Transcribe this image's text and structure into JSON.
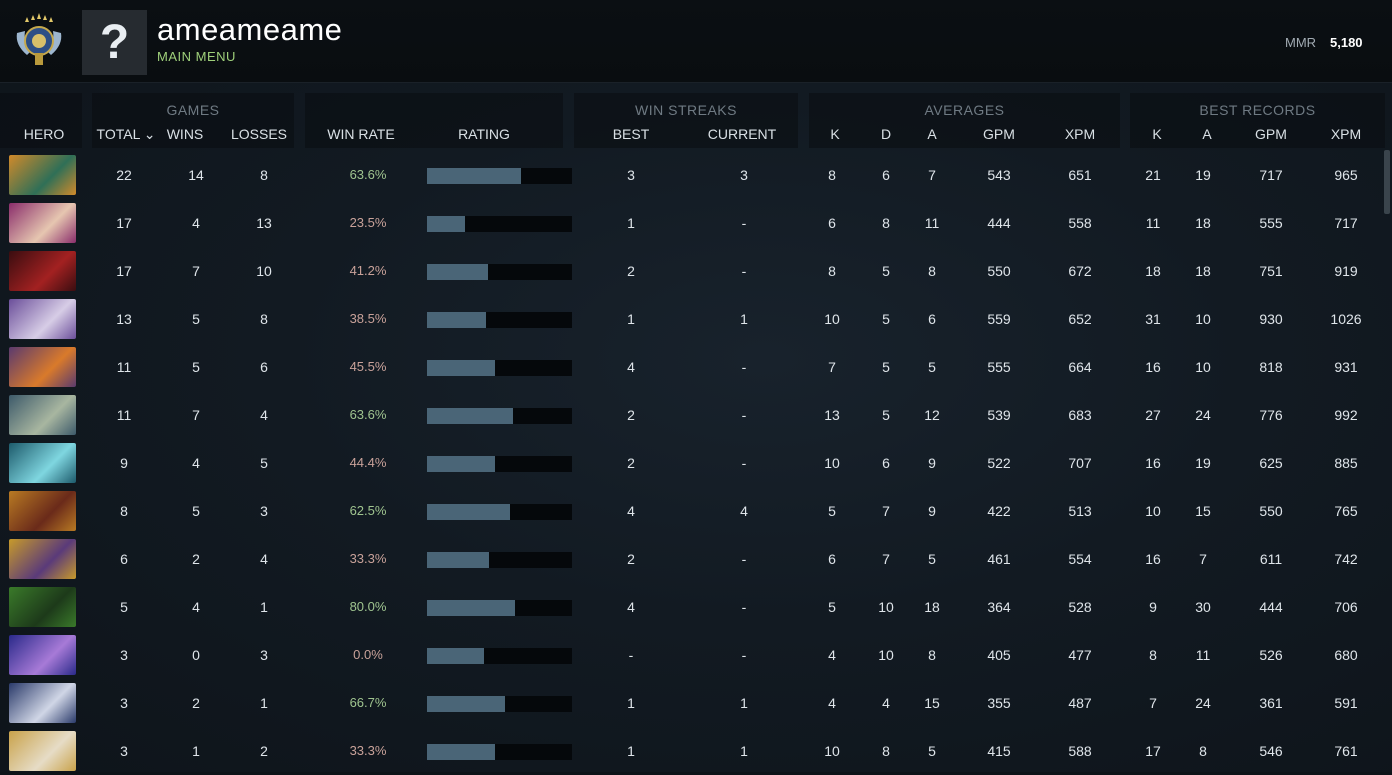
{
  "header": {
    "username": "ameameame",
    "subtitle": "MAIN MENU",
    "avatar_glyph": "?",
    "mmr_label": "MMR",
    "mmr_value": "5,180"
  },
  "groups": {
    "games": "GAMES",
    "win_streaks": "WIN STREAKS",
    "averages": "AVERAGES",
    "best_records": "BEST RECORDS"
  },
  "columns": {
    "hero": "HERO",
    "total": "TOTAL ⌄",
    "wins": "WINS",
    "losses": "LOSSES",
    "win_rate": "WIN RATE",
    "rating": "RATING",
    "best": "BEST",
    "current": "CURRENT",
    "avg_k": "K",
    "avg_d": "D",
    "avg_a": "A",
    "avg_gpm": "GPM",
    "avg_xpm": "XPM",
    "rec_k": "K",
    "rec_a": "A",
    "rec_gpm": "GPM",
    "rec_xpm": "XPM"
  },
  "colors": {
    "wr_good": "#9fc48f",
    "wr_bad": "#c9a29a",
    "rating_bar": "#4a6577",
    "accent_green": "#9fd07a"
  },
  "rows": [
    {
      "hero_colors": [
        "#d18a2a",
        "#2f6f57"
      ],
      "total": "22",
      "wins": "14",
      "losses": "8",
      "win_rate": "63.6%",
      "good": true,
      "rating": 0.65,
      "best": "3",
      "current": "3",
      "k": "8",
      "d": "6",
      "a": "7",
      "gpm": "543",
      "xpm": "651",
      "rk": "21",
      "ra": "19",
      "rgpm": "717",
      "rxpm": "965"
    },
    {
      "hero_colors": [
        "#8a2d6b",
        "#e6c6b0"
      ],
      "total": "17",
      "wins": "4",
      "losses": "13",
      "win_rate": "23.5%",
      "good": false,
      "rating": 0.26,
      "best": "1",
      "current": "-",
      "k": "6",
      "d": "8",
      "a": "11",
      "gpm": "444",
      "xpm": "558",
      "rk": "11",
      "ra": "18",
      "rgpm": "555",
      "rxpm": "717"
    },
    {
      "hero_colors": [
        "#3a0d10",
        "#a32121"
      ],
      "total": "17",
      "wins": "7",
      "losses": "10",
      "win_rate": "41.2%",
      "good": false,
      "rating": 0.42,
      "best": "2",
      "current": "-",
      "k": "8",
      "d": "5",
      "a": "8",
      "gpm": "550",
      "xpm": "672",
      "rk": "18",
      "ra": "18",
      "rgpm": "751",
      "rxpm": "919"
    },
    {
      "hero_colors": [
        "#6b4e9a",
        "#d7cde6"
      ],
      "total": "13",
      "wins": "5",
      "losses": "8",
      "win_rate": "38.5%",
      "good": false,
      "rating": 0.41,
      "best": "1",
      "current": "1",
      "k": "10",
      "d": "5",
      "a": "6",
      "gpm": "559",
      "xpm": "652",
      "rk": "31",
      "ra": "10",
      "rgpm": "930",
      "rxpm": "1026"
    },
    {
      "hero_colors": [
        "#5a3a6e",
        "#d97a2b"
      ],
      "total": "11",
      "wins": "5",
      "losses": "6",
      "win_rate": "45.5%",
      "good": false,
      "rating": 0.47,
      "best": "4",
      "current": "-",
      "k": "7",
      "d": "5",
      "a": "5",
      "gpm": "555",
      "xpm": "664",
      "rk": "16",
      "ra": "10",
      "rgpm": "818",
      "rxpm": "931"
    },
    {
      "hero_colors": [
        "#3d5a6a",
        "#a8b6a0"
      ],
      "total": "11",
      "wins": "7",
      "losses": "4",
      "win_rate": "63.6%",
      "good": true,
      "rating": 0.59,
      "best": "2",
      "current": "-",
      "k": "13",
      "d": "5",
      "a": "12",
      "gpm": "539",
      "xpm": "683",
      "rk": "27",
      "ra": "24",
      "rgpm": "776",
      "rxpm": "992"
    },
    {
      "hero_colors": [
        "#1d5a6b",
        "#7fd6e0"
      ],
      "total": "9",
      "wins": "4",
      "losses": "5",
      "win_rate": "44.4%",
      "good": false,
      "rating": 0.47,
      "best": "2",
      "current": "-",
      "k": "10",
      "d": "6",
      "a": "9",
      "gpm": "522",
      "xpm": "707",
      "rk": "16",
      "ra": "19",
      "rgpm": "625",
      "rxpm": "885"
    },
    {
      "hero_colors": [
        "#b87a23",
        "#6a2a1a"
      ],
      "total": "8",
      "wins": "5",
      "losses": "3",
      "win_rate": "62.5%",
      "good": true,
      "rating": 0.57,
      "best": "4",
      "current": "4",
      "k": "5",
      "d": "7",
      "a": "9",
      "gpm": "422",
      "xpm": "513",
      "rk": "10",
      "ra": "15",
      "rgpm": "550",
      "rxpm": "765"
    },
    {
      "hero_colors": [
        "#c79a2a",
        "#5a3a7a"
      ],
      "total": "6",
      "wins": "2",
      "losses": "4",
      "win_rate": "33.3%",
      "good": false,
      "rating": 0.43,
      "best": "2",
      "current": "-",
      "k": "6",
      "d": "7",
      "a": "5",
      "gpm": "461",
      "xpm": "554",
      "rk": "16",
      "ra": "7",
      "rgpm": "611",
      "rxpm": "742"
    },
    {
      "hero_colors": [
        "#3a7a2a",
        "#1d3a1a"
      ],
      "total": "5",
      "wins": "4",
      "losses": "1",
      "win_rate": "80.0%",
      "good": true,
      "rating": 0.61,
      "best": "4",
      "current": "-",
      "k": "5",
      "d": "10",
      "a": "18",
      "gpm": "364",
      "xpm": "528",
      "rk": "9",
      "ra": "30",
      "rgpm": "444",
      "rxpm": "706"
    },
    {
      "hero_colors": [
        "#2a2a8a",
        "#a77ad7"
      ],
      "total": "3",
      "wins": "0",
      "losses": "3",
      "win_rate": "0.0%",
      "good": false,
      "rating": 0.39,
      "best": "-",
      "current": "-",
      "k": "4",
      "d": "10",
      "a": "8",
      "gpm": "405",
      "xpm": "477",
      "rk": "8",
      "ra": "11",
      "rgpm": "526",
      "rxpm": "680"
    },
    {
      "hero_colors": [
        "#2a3a6a",
        "#d0d6e6"
      ],
      "total": "3",
      "wins": "2",
      "losses": "1",
      "win_rate": "66.7%",
      "good": true,
      "rating": 0.54,
      "best": "1",
      "current": "1",
      "k": "4",
      "d": "4",
      "a": "15",
      "gpm": "355",
      "xpm": "487",
      "rk": "7",
      "ra": "24",
      "rgpm": "361",
      "rxpm": "591"
    },
    {
      "hero_colors": [
        "#c9a24a",
        "#e6dcc6"
      ],
      "total": "3",
      "wins": "1",
      "losses": "2",
      "win_rate": "33.3%",
      "good": false,
      "rating": 0.47,
      "best": "1",
      "current": "1",
      "k": "10",
      "d": "8",
      "a": "5",
      "gpm": "415",
      "xpm": "588",
      "rk": "17",
      "ra": "8",
      "rgpm": "546",
      "rxpm": "761"
    }
  ]
}
